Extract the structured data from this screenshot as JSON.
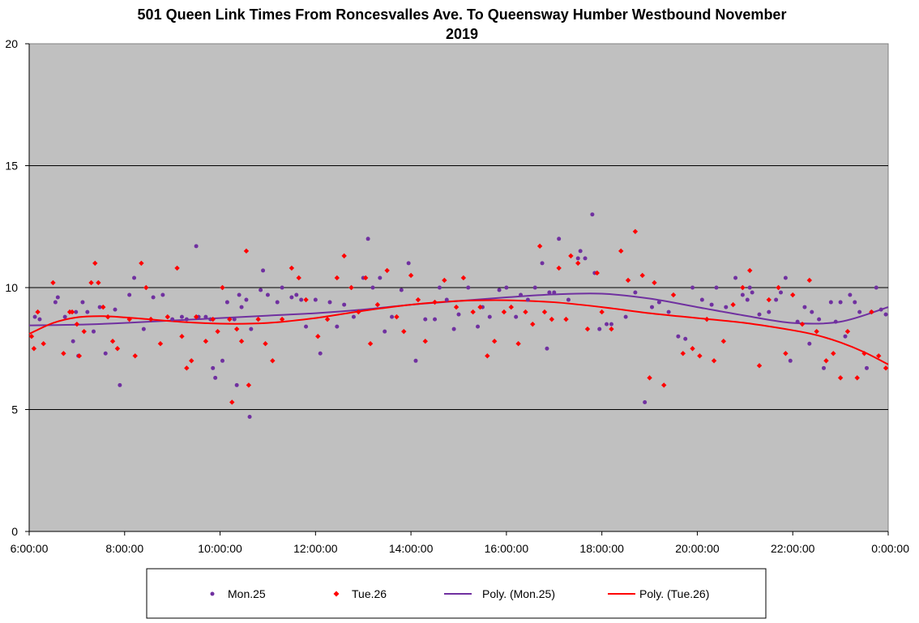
{
  "chart_data": {
    "type": "scatter",
    "title": "501 Queen Link Times From Roncesvalles Ave. To Queensway Humber Westbound November 2019",
    "title_lines": [
      "501 Queen Link Times From Roncesvalles Ave. To Queensway Humber Westbound November",
      "2019"
    ],
    "xlabel": "",
    "ylabel": "",
    "xlim": [
      6,
      24
    ],
    "ylim": [
      0,
      20
    ],
    "x_ticks": [
      6,
      8,
      10,
      12,
      14,
      16,
      18,
      20,
      22,
      24
    ],
    "x_tick_labels": [
      "6:00:00",
      "8:00:00",
      "10:00:00",
      "12:00:00",
      "14:00:00",
      "16:00:00",
      "18:00:00",
      "20:00:00",
      "22:00:00",
      "0:00:00"
    ],
    "y_ticks": [
      0,
      5,
      10,
      15,
      20
    ],
    "y_tick_labels": [
      "0",
      "5",
      "10",
      "15",
      "20"
    ],
    "grid": "horizontal",
    "plot_background": "#c0c0c0",
    "legend_placement": "bottom",
    "series": [
      {
        "name": "Mon.25",
        "kind": "points",
        "marker": "circle",
        "color": "#7030a0",
        "x": [
          6.12,
          6.22,
          6.55,
          6.6,
          6.75,
          6.92,
          6.98,
          7.03,
          7.12,
          7.22,
          7.35,
          7.48,
          7.6,
          7.8,
          7.9,
          8.1,
          8.2,
          8.4,
          8.6,
          8.8,
          9.0,
          9.2,
          9.3,
          9.5,
          9.55,
          9.7,
          9.8,
          9.85,
          9.9,
          10.05,
          10.15,
          10.3,
          10.35,
          10.4,
          10.45,
          10.55,
          10.62,
          10.65,
          10.85,
          10.9,
          11.0,
          11.2,
          11.3,
          11.5,
          11.6,
          11.7,
          11.8,
          12.0,
          12.1,
          12.3,
          12.45,
          12.6,
          12.8,
          13.0,
          13.1,
          13.2,
          13.35,
          13.45,
          13.6,
          13.8,
          13.95,
          14.1,
          14.3,
          14.5,
          14.6,
          14.75,
          14.9,
          15.0,
          15.2,
          15.4,
          15.5,
          15.65,
          15.85,
          16.0,
          16.2,
          16.3,
          16.45,
          16.6,
          16.75,
          16.85,
          16.9,
          17.0,
          17.1,
          17.3,
          17.5,
          17.55,
          17.65,
          17.8,
          17.85,
          17.95,
          18.1,
          18.2,
          18.5,
          18.7,
          18.9,
          19.05,
          19.2,
          19.4,
          19.6,
          19.75,
          19.9,
          20.1,
          20.3,
          20.4,
          20.6,
          20.8,
          20.95,
          21.05,
          21.1,
          21.15,
          21.3,
          21.5,
          21.65,
          21.75,
          21.85,
          21.95,
          22.1,
          22.25,
          22.35,
          22.4,
          22.55,
          22.65,
          22.8,
          22.9,
          23.0,
          23.1,
          23.2,
          23.3,
          23.4,
          23.55,
          23.65,
          23.75,
          23.85,
          23.95
        ],
        "y": [
          8.8,
          8.7,
          9.4,
          9.6,
          8.8,
          7.8,
          9.0,
          7.2,
          9.4,
          9.0,
          8.2,
          9.2,
          7.3,
          9.1,
          6.0,
          9.7,
          10.4,
          8.3,
          9.6,
          9.7,
          8.7,
          8.8,
          8.7,
          11.7,
          8.8,
          8.8,
          8.7,
          6.7,
          6.3,
          7.0,
          9.4,
          8.7,
          6.0,
          9.7,
          9.2,
          9.5,
          4.7,
          8.3,
          9.9,
          10.7,
          9.7,
          9.4,
          10.0,
          9.6,
          9.7,
          9.5,
          8.4,
          9.5,
          7.3,
          9.4,
          8.4,
          9.3,
          8.8,
          10.4,
          12.0,
          10.0,
          10.4,
          8.2,
          8.8,
          9.9,
          11.0,
          7.0,
          8.7,
          8.7,
          10.0,
          9.5,
          8.3,
          8.9,
          10.0,
          8.4,
          9.2,
          8.8,
          9.9,
          10.0,
          8.8,
          9.7,
          9.5,
          10.0,
          11.0,
          7.5,
          9.8,
          9.8,
          12.0,
          9.5,
          11.2,
          11.5,
          11.2,
          13.0,
          10.6,
          8.3,
          8.5,
          8.5,
          8.8,
          9.8,
          5.3,
          9.2,
          9.4,
          9.0,
          8.0,
          7.9,
          10.0,
          9.5,
          9.3,
          10.0,
          9.2,
          10.4,
          9.7,
          9.5,
          10.0,
          9.8,
          8.9,
          9.0,
          9.5,
          9.8,
          10.4,
          7.0,
          8.6,
          9.2,
          7.7,
          9.0,
          8.7,
          6.7,
          9.4,
          8.6,
          9.4,
          8.0,
          9.7,
          9.4,
          9.0,
          6.7,
          9.0,
          10.0,
          9.1,
          8.9
        ]
      },
      {
        "name": "Tue.26",
        "kind": "points",
        "marker": "diamond",
        "color": "#ff0000",
        "x": [
          6.05,
          6.1,
          6.18,
          6.3,
          6.5,
          6.72,
          6.85,
          6.9,
          7.0,
          7.05,
          7.15,
          7.3,
          7.38,
          7.45,
          7.55,
          7.65,
          7.75,
          7.85,
          8.1,
          8.22,
          8.35,
          8.45,
          8.55,
          8.75,
          8.9,
          9.1,
          9.2,
          9.3,
          9.4,
          9.5,
          9.7,
          9.85,
          9.95,
          10.05,
          10.2,
          10.25,
          10.35,
          10.45,
          10.55,
          10.6,
          10.8,
          10.95,
          11.1,
          11.3,
          11.5,
          11.65,
          11.8,
          12.05,
          12.25,
          12.45,
          12.6,
          12.75,
          12.9,
          13.05,
          13.15,
          13.3,
          13.5,
          13.7,
          13.85,
          14.0,
          14.15,
          14.3,
          14.5,
          14.7,
          14.95,
          15.1,
          15.3,
          15.45,
          15.6,
          15.75,
          15.95,
          16.1,
          16.25,
          16.4,
          16.55,
          16.7,
          16.8,
          16.95,
          17.1,
          17.25,
          17.35,
          17.5,
          17.7,
          17.9,
          18.0,
          18.2,
          18.4,
          18.55,
          18.7,
          18.85,
          19.0,
          19.1,
          19.3,
          19.5,
          19.7,
          19.9,
          20.05,
          20.2,
          20.35,
          20.55,
          20.75,
          20.95,
          21.1,
          21.3,
          21.5,
          21.7,
          21.85,
          22.0,
          22.2,
          22.35,
          22.5,
          22.7,
          22.85,
          23.0,
          23.15,
          23.35,
          23.5,
          23.65,
          23.8,
          23.95
        ],
        "y": [
          8.0,
          7.5,
          9.0,
          7.7,
          10.2,
          7.3,
          9.0,
          9.0,
          8.5,
          7.2,
          8.2,
          10.2,
          11.0,
          10.2,
          9.2,
          8.8,
          7.8,
          7.5,
          8.7,
          7.2,
          11.0,
          10.0,
          8.7,
          7.7,
          8.8,
          10.8,
          8.0,
          6.7,
          7.0,
          8.8,
          7.8,
          8.7,
          8.2,
          10.0,
          8.7,
          5.3,
          8.3,
          7.8,
          11.5,
          6.0,
          8.7,
          7.7,
          7.0,
          8.7,
          10.8,
          10.4,
          9.5,
          8.0,
          8.7,
          10.4,
          11.3,
          10.0,
          9.0,
          10.4,
          7.7,
          9.3,
          10.7,
          8.8,
          8.2,
          10.5,
          9.5,
          7.8,
          9.4,
          10.3,
          9.2,
          10.4,
          9.0,
          9.2,
          7.2,
          7.8,
          9.0,
          9.2,
          7.7,
          9.0,
          8.5,
          11.7,
          9.0,
          8.7,
          10.8,
          8.7,
          11.3,
          11.0,
          8.3,
          10.6,
          9.0,
          8.3,
          11.5,
          10.3,
          12.3,
          10.5,
          6.3,
          10.2,
          6.0,
          9.7,
          7.3,
          7.5,
          7.2,
          8.7,
          7.0,
          7.8,
          9.3,
          10.0,
          10.7,
          6.8,
          9.5,
          10.0,
          7.3,
          9.7,
          8.5,
          10.3,
          8.2,
          7.0,
          7.3,
          6.3,
          8.2,
          6.3,
          7.3,
          9.0,
          7.2,
          6.7
        ]
      },
      {
        "name": "Poly. (Mon.25)",
        "kind": "trendline",
        "color": "#7030a0",
        "x": [
          6,
          7,
          8,
          9,
          10,
          11,
          12,
          13,
          14,
          15,
          16,
          17,
          18,
          19,
          20,
          21,
          22,
          23,
          24
        ],
        "y": [
          8.45,
          8.48,
          8.55,
          8.65,
          8.75,
          8.85,
          8.95,
          9.1,
          9.3,
          9.45,
          9.6,
          9.72,
          9.75,
          9.55,
          9.2,
          8.85,
          8.55,
          8.6,
          9.2
        ]
      },
      {
        "name": "Poly. (Tue.26)",
        "kind": "trendline",
        "color": "#ff0000",
        "x": [
          6,
          6.5,
          7,
          7.5,
          8,
          8.5,
          9,
          10,
          11,
          12,
          13,
          14,
          15,
          16,
          17,
          18,
          19,
          20,
          21,
          22,
          22.5,
          23,
          23.5,
          24
        ],
        "y": [
          8.1,
          8.55,
          8.78,
          8.83,
          8.78,
          8.7,
          8.62,
          8.52,
          8.55,
          8.75,
          9.05,
          9.3,
          9.45,
          9.48,
          9.4,
          9.2,
          8.95,
          8.75,
          8.55,
          8.25,
          8.05,
          7.75,
          7.35,
          6.85
        ]
      }
    ]
  }
}
